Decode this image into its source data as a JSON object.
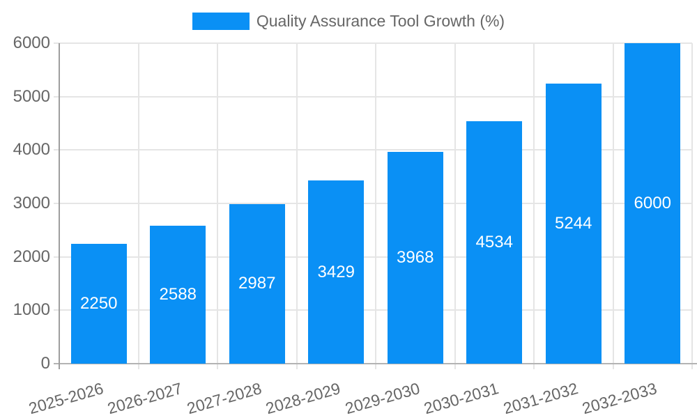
{
  "chart_data": {
    "type": "bar",
    "title": "Quality Assurance Tool Growth (%)",
    "categories": [
      "2025-2026",
      "2026-2027",
      "2027-2028",
      "2028-2029",
      "2029-2030",
      "2030-2031",
      "2031-2032",
      "2032-2033"
    ],
    "values": [
      2250,
      2588,
      2987,
      3429,
      3968,
      4534,
      5244,
      6000
    ],
    "xlabel": "",
    "ylabel": "",
    "ylim": [
      0,
      6000
    ],
    "yticks": [
      0,
      1000,
      2000,
      3000,
      4000,
      5000,
      6000
    ],
    "grid": true,
    "legend_position": "top",
    "value_labels_inside_bars": true,
    "colors": {
      "bar": "#0a90f5",
      "grid": "#e5e5e5",
      "axis_y": "#9e9e9e",
      "axis_x": "#b3b3b3",
      "tick_label": "#666666",
      "legend_text": "#666666",
      "value_label": "#ffffff"
    }
  }
}
